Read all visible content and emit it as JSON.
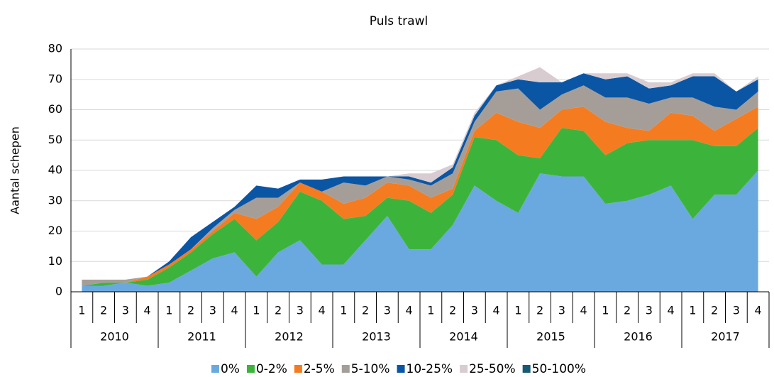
{
  "chart_data": {
    "type": "stacked_area",
    "title": "Puls trawl",
    "y_label": "Aantal schepen",
    "categories": [
      "1",
      "2",
      "3",
      "4",
      "1",
      "2",
      "3",
      "4",
      "1",
      "2",
      "3",
      "4",
      "1",
      "2",
      "3",
      "4",
      "1",
      "2",
      "3",
      "4",
      "1",
      "2",
      "3",
      "4",
      "1",
      "2",
      "3",
      "4",
      "1",
      "2",
      "3",
      "4"
    ],
    "year_groups": [
      "2010",
      "2011",
      "2012",
      "2013",
      "2014",
      "2015",
      "2016",
      "2017"
    ],
    "ylim": [
      0,
      80
    ],
    "yticks": [
      0,
      10,
      20,
      30,
      40,
      50,
      60,
      70,
      80
    ],
    "grid": true,
    "legend": "bottom",
    "series": [
      {
        "name": "0%",
        "color": "#6aa9e0",
        "values": [
          2,
          2,
          3,
          2,
          3,
          7,
          11,
          13,
          5,
          13,
          17,
          9,
          9,
          17,
          25,
          14,
          14,
          22,
          35,
          30,
          26,
          39,
          38,
          38,
          29,
          30,
          32,
          35,
          24,
          32,
          32,
          40
        ]
      },
      {
        "name": "0-2%",
        "color": "#3cb43c",
        "values": [
          0,
          1,
          0,
          2,
          5,
          6,
          8,
          11,
          12,
          10,
          16,
          21,
          15,
          8,
          6,
          16,
          12,
          10,
          16,
          20,
          19,
          5,
          16,
          15,
          16,
          19,
          18,
          15,
          26,
          16,
          16,
          14
        ]
      },
      {
        "name": "2-5%",
        "color": "#f47b20",
        "values": [
          0,
          0,
          0,
          1,
          1,
          1,
          1,
          2,
          7,
          5,
          3,
          3,
          5,
          6,
          5,
          5,
          5,
          2,
          2,
          9,
          11,
          10,
          6,
          8,
          11,
          5,
          3,
          9,
          8,
          5,
          9,
          7
        ]
      },
      {
        "name": "5-10%",
        "color": "#a59e98",
        "values": [
          2,
          1,
          1,
          0,
          0,
          0,
          1,
          1,
          7,
          3,
          0,
          0,
          7,
          4,
          2,
          2,
          4,
          5,
          3,
          7,
          11,
          6,
          5,
          7,
          8,
          10,
          9,
          5,
          6,
          8,
          3,
          5
        ]
      },
      {
        "name": "10-25%",
        "color": "#0b56a4",
        "values": [
          0,
          0,
          0,
          0,
          1,
          4,
          2,
          1,
          4,
          3,
          1,
          4,
          2,
          3,
          0,
          1,
          1,
          2,
          2,
          2,
          3,
          9,
          4,
          4,
          6,
          7,
          5,
          4,
          7,
          10,
          6,
          4
        ]
      },
      {
        "name": "25-50%",
        "color": "#d9ccd0",
        "values": [
          0,
          0,
          0,
          0,
          0,
          0,
          0,
          0,
          0,
          0,
          0,
          0,
          0,
          0,
          0,
          1,
          3,
          1,
          1,
          0,
          1,
          5,
          0,
          0,
          2,
          1,
          2,
          1,
          1,
          1,
          0,
          1
        ]
      },
      {
        "name": "50-100%",
        "color": "#175a78",
        "values": [
          0,
          0,
          0,
          0,
          0,
          0,
          0,
          0,
          0,
          0,
          0,
          0,
          0,
          0,
          0,
          0,
          0,
          0,
          0,
          0,
          0,
          0,
          0,
          0,
          0,
          0,
          0,
          0,
          0,
          0,
          0,
          0
        ]
      }
    ]
  }
}
